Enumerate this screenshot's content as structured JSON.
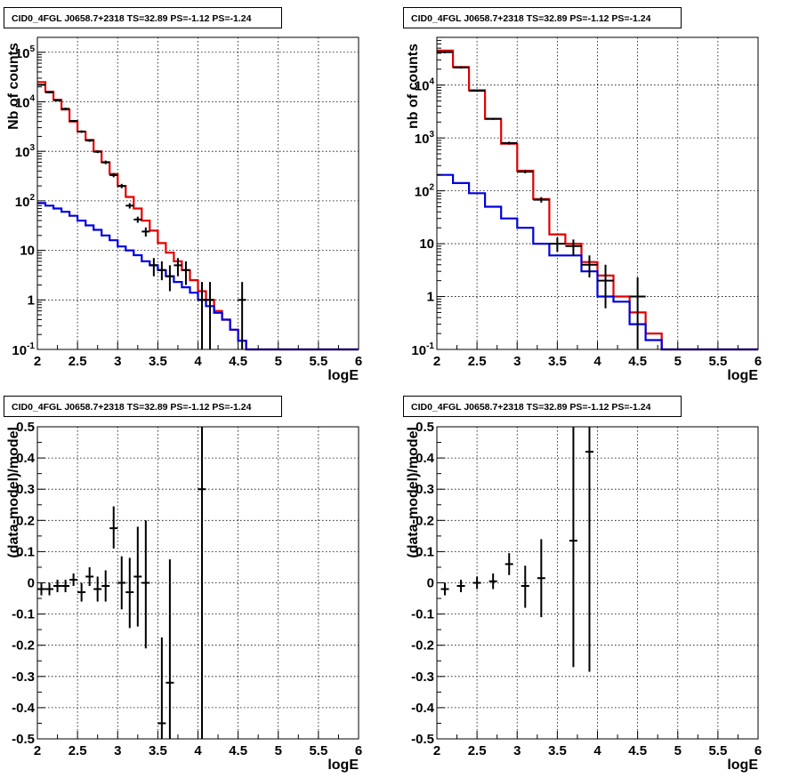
{
  "panels_titles": [
    "CID0_4FGL J0658.7+2318 TS=32.89 PS=-1.12 PS=-1.24",
    "CID0_4FGL J0658.7+2318 TS=32.89 PS=-1.12 PS=-1.24",
    "CID0_4FGL J0658.7+2318 TS=32.89 PS=-1.12 PS=-1.24",
    "CID0_4FGL J0658.7+2318 TS=32.89 PS=-1.12 PS=-1.24"
  ],
  "chart_data": [
    {
      "type": "line",
      "title": "CID0_4FGL J0658.7+2318 TS=32.89 PS=-1.12 PS=-1.24",
      "xlabel": "logE",
      "ylabel": "Nb of counts",
      "xlim": [
        2,
        6
      ],
      "ylim": [
        0.1,
        200000
      ],
      "yscale": "log",
      "grid": true,
      "x_ticks": [
        "2",
        "2.5",
        "3",
        "3.5",
        "4",
        "4.5",
        "5",
        "5.5",
        "6"
      ],
      "y_ticks": [
        "10^-1",
        "1",
        "10",
        "10^2",
        "10^3",
        "10^4",
        "10^5"
      ],
      "bin_edges": [
        2.0,
        2.1,
        2.2,
        2.3,
        2.4,
        2.5,
        2.6,
        2.7,
        2.8,
        2.9,
        3.0,
        3.1,
        3.2,
        3.3,
        3.4,
        3.5,
        3.6,
        3.7,
        3.8,
        3.9,
        4.0,
        4.1,
        4.2,
        4.3,
        4.4,
        4.5,
        4.6,
        4.7,
        4.8,
        4.9,
        5.0,
        5.1,
        5.2,
        5.3,
        5.4,
        5.5,
        5.6,
        5.7,
        5.8,
        5.9,
        6.0
      ],
      "series": [
        {
          "color": "#e00000",
          "values": [
            25000,
            16000,
            11000,
            7000,
            4000,
            2500,
            1700,
            1000,
            600,
            350,
            200,
            120,
            70,
            40,
            25,
            14,
            9,
            6,
            4,
            2.5,
            1.5,
            1.0,
            0.6,
            0.4,
            0.25,
            0.15,
            0.1,
            0.1,
            0.1,
            0.1,
            0.1,
            0.1,
            0.1,
            0.1,
            0.1,
            0.1,
            0.1,
            0.1,
            0.1,
            0.1
          ]
        },
        {
          "color": "#0000dd",
          "values": [
            90,
            80,
            70,
            60,
            50,
            40,
            32,
            26,
            20,
            16,
            12,
            10,
            8,
            6,
            5,
            4,
            3,
            2.3,
            1.8,
            1.4,
            1.0,
            0.75,
            0.55,
            0.4,
            0.25,
            0.15,
            0.1,
            0.1,
            0.1,
            0.1,
            0.1,
            0.1,
            0.1,
            0.1,
            0.1,
            0.1,
            0.1,
            0.1,
            0.1,
            0.1
          ]
        }
      ],
      "points": [
        {
          "x": 2.05,
          "y": 22000,
          "lo": 21000,
          "hi": 23000
        },
        {
          "x": 2.15,
          "y": 15500,
          "lo": 14800,
          "hi": 16200
        },
        {
          "x": 2.25,
          "y": 10700,
          "lo": 10200,
          "hi": 11200
        },
        {
          "x": 2.35,
          "y": 7200,
          "lo": 6900,
          "hi": 7600
        },
        {
          "x": 2.45,
          "y": 4100,
          "lo": 3900,
          "hi": 4300
        },
        {
          "x": 2.55,
          "y": 2500,
          "lo": 2350,
          "hi": 2650
        },
        {
          "x": 2.65,
          "y": 1650,
          "lo": 1550,
          "hi": 1750
        },
        {
          "x": 2.75,
          "y": 980,
          "lo": 920,
          "hi": 1040
        },
        {
          "x": 2.85,
          "y": 600,
          "lo": 550,
          "hi": 650
        },
        {
          "x": 2.95,
          "y": 330,
          "lo": 300,
          "hi": 360
        },
        {
          "x": 3.05,
          "y": 200,
          "lo": 180,
          "hi": 220
        },
        {
          "x": 3.15,
          "y": 80,
          "lo": 70,
          "hi": 90
        },
        {
          "x": 3.25,
          "y": 42,
          "lo": 36,
          "hi": 48
        },
        {
          "x": 3.35,
          "y": 24,
          "lo": 19,
          "hi": 29
        },
        {
          "x": 3.45,
          "y": 5,
          "lo": 3,
          "hi": 7
        },
        {
          "x": 3.55,
          "y": 4,
          "lo": 2.5,
          "hi": 6
        },
        {
          "x": 3.65,
          "y": 3,
          "lo": 1.5,
          "hi": 5
        },
        {
          "x": 3.75,
          "y": 5,
          "lo": 3,
          "hi": 7
        },
        {
          "x": 3.85,
          "y": 4,
          "lo": 2,
          "hi": 6
        },
        {
          "x": 4.05,
          "y": 1,
          "lo": 0.1,
          "hi": 2.3
        },
        {
          "x": 4.15,
          "y": 1,
          "lo": 0.1,
          "hi": 2.3
        },
        {
          "x": 4.55,
          "y": 1,
          "lo": 0.1,
          "hi": 2.3
        }
      ]
    },
    {
      "type": "line",
      "title": "CID0_4FGL J0658.7+2318 TS=32.89 PS=-1.12 PS=-1.24",
      "xlabel": "logE",
      "ylabel": "nb of counts",
      "xlim": [
        2,
        6
      ],
      "ylim": [
        0.1,
        80000
      ],
      "yscale": "log",
      "grid": true,
      "x_ticks": [
        "2",
        "2.5",
        "3",
        "3.5",
        "4",
        "4.5",
        "5",
        "5.5",
        "6"
      ],
      "y_ticks": [
        "10^-1",
        "1",
        "10",
        "10^2",
        "10^3",
        "10^4"
      ],
      "bin_edges": [
        2.0,
        2.2,
        2.4,
        2.6,
        2.8,
        3.0,
        3.2,
        3.4,
        3.6,
        3.8,
        4.0,
        4.2,
        4.4,
        4.6,
        4.8,
        5.0,
        5.2,
        5.4,
        5.6,
        5.8,
        6.0
      ],
      "series": [
        {
          "color": "#e00000",
          "values": [
            45000,
            22000,
            8000,
            2300,
            780,
            240,
            70,
            15,
            10,
            4.5,
            2.5,
            1.0,
            0.5,
            0.2,
            0.1,
            0.1,
            0.1,
            0.1,
            0.1,
            0.1
          ]
        },
        {
          "color": "#0000dd",
          "values": [
            200,
            140,
            90,
            50,
            30,
            20,
            10,
            6,
            6,
            3,
            1,
            0.8,
            0.3,
            0.15,
            0.1,
            0.1,
            0.1,
            0.1,
            0.1,
            0.1
          ]
        }
      ],
      "points": [
        {
          "x": 2.1,
          "y": 42000,
          "lo": 40000,
          "hi": 44000
        },
        {
          "x": 2.3,
          "y": 21500,
          "lo": 20500,
          "hi": 22500
        },
        {
          "x": 2.5,
          "y": 7800,
          "lo": 7500,
          "hi": 8100
        },
        {
          "x": 2.7,
          "y": 2300,
          "lo": 2200,
          "hi": 2400
        },
        {
          "x": 2.9,
          "y": 800,
          "lo": 750,
          "hi": 850
        },
        {
          "x": 3.1,
          "y": 230,
          "lo": 215,
          "hi": 245
        },
        {
          "x": 3.3,
          "y": 68,
          "lo": 60,
          "hi": 76
        },
        {
          "x": 3.5,
          "y": 10,
          "lo": 7,
          "hi": 13
        },
        {
          "x": 3.7,
          "y": 9,
          "lo": 6,
          "hi": 12
        },
        {
          "x": 3.9,
          "y": 4,
          "lo": 2.3,
          "hi": 6
        },
        {
          "x": 4.1,
          "y": 2,
          "lo": 0.6,
          "hi": 4
        },
        {
          "x": 4.5,
          "y": 1,
          "lo": 0.1,
          "hi": 2.3
        }
      ]
    },
    {
      "type": "scatter",
      "title": "CID0_4FGL J0658.7+2318 TS=32.89 PS=-1.12 PS=-1.24",
      "xlabel": "logE",
      "ylabel": "(data-model)/model",
      "xlim": [
        2,
        6
      ],
      "ylim": [
        -0.5,
        0.5
      ],
      "grid": true,
      "x_ticks": [
        "2",
        "2.5",
        "3",
        "3.5",
        "4",
        "4.5",
        "5",
        "5.5",
        "6"
      ],
      "y_ticks": [
        "-0.5",
        "-0.4",
        "-0.3",
        "-0.2",
        "-0.1",
        "0",
        "0.1",
        "0.2",
        "0.3",
        "0.4",
        "0.5"
      ],
      "points": [
        {
          "x": 2.05,
          "y": -0.02,
          "lo": -0.04,
          "hi": 0.0
        },
        {
          "x": 2.15,
          "y": -0.02,
          "lo": -0.04,
          "hi": 0.0
        },
        {
          "x": 2.25,
          "y": -0.01,
          "lo": -0.03,
          "hi": 0.01
        },
        {
          "x": 2.35,
          "y": -0.01,
          "lo": -0.03,
          "hi": 0.01
        },
        {
          "x": 2.45,
          "y": 0.01,
          "lo": -0.01,
          "hi": 0.03
        },
        {
          "x": 2.55,
          "y": -0.03,
          "lo": -0.06,
          "hi": 0.0
        },
        {
          "x": 2.65,
          "y": 0.02,
          "lo": -0.01,
          "hi": 0.05
        },
        {
          "x": 2.75,
          "y": -0.02,
          "lo": -0.06,
          "hi": 0.02
        },
        {
          "x": 2.85,
          "y": -0.01,
          "lo": -0.06,
          "hi": 0.04
        },
        {
          "x": 2.95,
          "y": 0.175,
          "lo": 0.11,
          "hi": 0.245
        },
        {
          "x": 3.05,
          "y": 0.0,
          "lo": -0.085,
          "hi": 0.085
        },
        {
          "x": 3.15,
          "y": -0.03,
          "lo": -0.145,
          "hi": 0.08
        },
        {
          "x": 3.25,
          "y": 0.02,
          "lo": -0.14,
          "hi": 0.18
        },
        {
          "x": 3.35,
          "y": 0.0,
          "lo": -0.21,
          "hi": 0.2
        },
        {
          "x": 3.55,
          "y": -0.45,
          "lo": -0.5,
          "hi": -0.175
        },
        {
          "x": 3.65,
          "y": -0.32,
          "lo": -0.5,
          "hi": 0.075
        },
        {
          "x": 4.05,
          "y": 0.3,
          "lo": -0.5,
          "hi": 0.5
        }
      ]
    },
    {
      "type": "scatter",
      "title": "CID0_4FGL J0658.7+2318 TS=32.89 PS=-1.12 PS=-1.24",
      "xlabel": "logE",
      "ylabel": "(data-model)/model",
      "xlim": [
        2,
        6
      ],
      "ylim": [
        -0.5,
        0.5
      ],
      "grid": true,
      "x_ticks": [
        "2",
        "2.5",
        "3",
        "3.5",
        "4",
        "4.5",
        "5",
        "5.5",
        "6"
      ],
      "y_ticks": [
        "-0.5",
        "-0.4",
        "-0.3",
        "-0.2",
        "-0.1",
        "0",
        "0.1",
        "0.2",
        "0.3",
        "0.4",
        "0.5"
      ],
      "points": [
        {
          "x": 2.1,
          "y": -0.02,
          "lo": -0.04,
          "hi": 0.0
        },
        {
          "x": 2.3,
          "y": -0.01,
          "lo": -0.03,
          "hi": 0.01
        },
        {
          "x": 2.5,
          "y": 0.0,
          "lo": -0.02,
          "hi": 0.02
        },
        {
          "x": 2.7,
          "y": 0.005,
          "lo": -0.02,
          "hi": 0.03
        },
        {
          "x": 2.9,
          "y": 0.06,
          "lo": 0.025,
          "hi": 0.095
        },
        {
          "x": 3.1,
          "y": -0.01,
          "lo": -0.08,
          "hi": 0.055
        },
        {
          "x": 3.3,
          "y": 0.015,
          "lo": -0.11,
          "hi": 0.14
        },
        {
          "x": 3.7,
          "y": 0.135,
          "lo": -0.27,
          "hi": 0.5
        },
        {
          "x": 3.9,
          "y": 0.42,
          "lo": -0.285,
          "hi": 0.5
        }
      ]
    }
  ]
}
